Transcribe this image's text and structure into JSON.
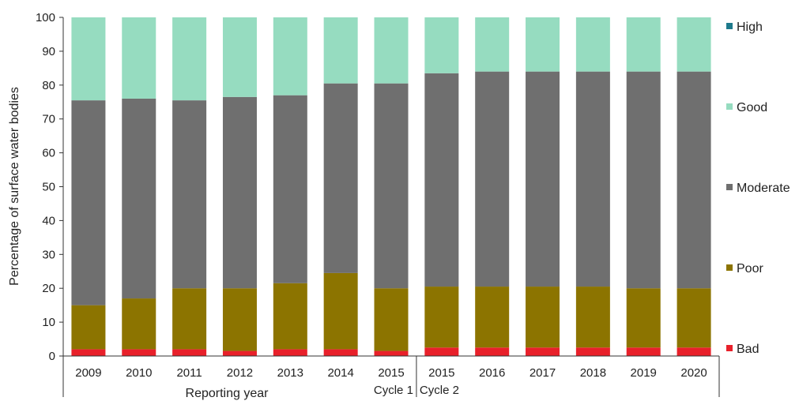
{
  "chart_data": {
    "type": "bar",
    "stacked": true,
    "title": "",
    "ylabel": "Percentage of surface water bodies",
    "xlabel": "Reporting year",
    "ylim": [
      0,
      100
    ],
    "yticks": [
      0,
      10,
      20,
      30,
      40,
      50,
      60,
      70,
      80,
      90,
      100
    ],
    "grid": false,
    "legend_position": "right",
    "categories": [
      "2009",
      "2010",
      "2011",
      "2012",
      "2013",
      "2014",
      "2015",
      "2015",
      "2016",
      "2017",
      "2018",
      "2019",
      "2020"
    ],
    "groups": [
      {
        "label": "Cycle 1",
        "start": 0,
        "end": 6
      },
      {
        "label": "Cycle 2",
        "start": 7,
        "end": 12
      }
    ],
    "series": [
      {
        "name": "Bad",
        "color": "#e8202a",
        "values": [
          2,
          2,
          2,
          1.5,
          2,
          2,
          1.5,
          2.5,
          2.5,
          2.5,
          2.5,
          2.5,
          2.5
        ]
      },
      {
        "name": "Poor",
        "color": "#8c7400",
        "values": [
          13,
          15,
          18,
          18.5,
          19.5,
          22.5,
          18.5,
          18,
          18,
          18,
          18,
          17.5,
          17.5
        ]
      },
      {
        "name": "Moderate",
        "color": "#6f6f6f",
        "values": [
          60.5,
          59,
          55.5,
          56.5,
          55.5,
          56,
          60.5,
          63,
          63.5,
          63.5,
          63.5,
          64,
          64
        ]
      },
      {
        "name": "Good",
        "color": "#96dcc0",
        "values": [
          24.5,
          24,
          24.5,
          23.5,
          23,
          19.5,
          19.5,
          16.5,
          16,
          16,
          16,
          16,
          16
        ]
      },
      {
        "name": "High",
        "color": "#1e7a8c",
        "values": [
          0,
          0,
          0,
          0,
          0,
          0,
          0,
          0,
          0,
          0,
          0,
          0,
          0
        ]
      }
    ]
  }
}
